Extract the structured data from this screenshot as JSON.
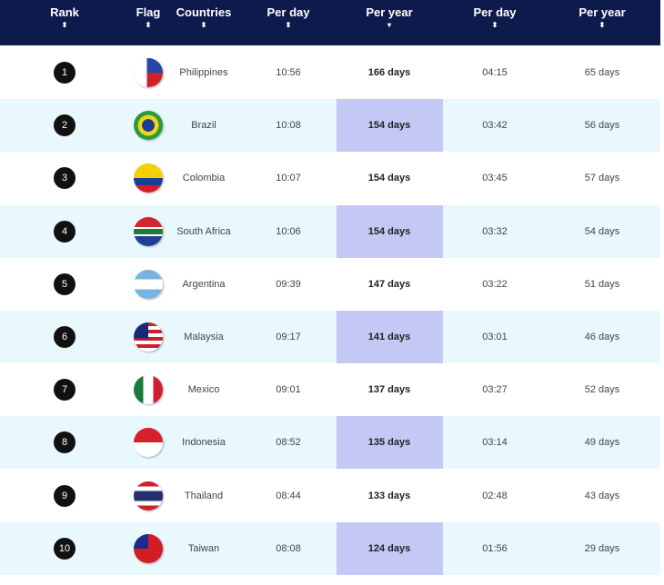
{
  "header": {
    "columns": [
      {
        "label": "Rank",
        "sort": "both"
      },
      {
        "label": "Flag",
        "sort": "both"
      },
      {
        "label": "Countries",
        "sort": "both"
      },
      {
        "label": "Per day",
        "sort": "both"
      },
      {
        "label": "Per year",
        "sort": "desc"
      },
      {
        "label": "Per day",
        "sort": "both"
      },
      {
        "label": "Per year",
        "sort": "both"
      }
    ]
  },
  "sort_icons": {
    "both": "⬍",
    "desc": "▾"
  },
  "rows": [
    {
      "rank": "1",
      "country": "Philippines",
      "per_day_1": "10:56",
      "per_year_1": "166 days",
      "per_day_2": "04:15",
      "per_year_2": "65 days",
      "flag": "linear-gradient(90deg,#fff 0 45%,transparent 45%),linear-gradient(180deg,#2846a8 0 50%,#d0202a 50%)"
    },
    {
      "rank": "2",
      "country": "Brazil",
      "per_day_1": "10:08",
      "per_year_1": "154 days",
      "per_day_2": "03:42",
      "per_year_2": "56 days",
      "flag": "radial-gradient(circle,#1c3d8f 0 30%,#f3d21c 31% 50%,#2a9a3c 51%)"
    },
    {
      "rank": "3",
      "country": "Colombia",
      "per_day_1": "10:07",
      "per_year_1": "154 days",
      "per_day_2": "03:45",
      "per_year_2": "57 days",
      "flag": "linear-gradient(180deg,#f5d000 0 50%,#1a3f96 50% 75%,#d41c2c 75%)"
    },
    {
      "rank": "4",
      "country": "South Africa",
      "per_day_1": "10:06",
      "per_year_1": "154 days",
      "per_day_2": "03:32",
      "per_year_2": "54 days",
      "flag": "linear-gradient(180deg,#d4242c 0 35%,#fff 35% 40%,#1d7a3a 40% 60%,#fff 60% 65%,#1d3f98 65%)"
    },
    {
      "rank": "5",
      "country": "Argentina",
      "per_day_1": "09:39",
      "per_year_1": "147 days",
      "per_day_2": "03:22",
      "per_year_2": "51 days",
      "flag": "linear-gradient(180deg,#78b4e0 0 33%,#fff 33% 67%,#78b4e0 67%)"
    },
    {
      "rank": "6",
      "country": "Malaysia",
      "per_day_1": "09:17",
      "per_year_1": "141 days",
      "per_day_2": "03:01",
      "per_year_2": "46 days",
      "flag": "linear-gradient(90deg,#1a2a78 0 50%,transparent 50%) top/100% 55% no-repeat,repeating-linear-gradient(180deg,#cc1f2e 0 4px,#fff 4px 8px)"
    },
    {
      "rank": "7",
      "country": "Mexico",
      "per_day_1": "09:01",
      "per_year_1": "137 days",
      "per_day_2": "03:27",
      "per_year_2": "52 days",
      "flag": "linear-gradient(90deg,#1a7a3e 0 33%,#fff 33% 67%,#ce2030 67%)"
    },
    {
      "rank": "8",
      "country": "Indonesia",
      "per_day_1": "08:52",
      "per_year_1": "135 days",
      "per_day_2": "03:14",
      "per_year_2": "49 days",
      "flag": "linear-gradient(180deg,#d8202c 0 50%,#fff 50%)"
    },
    {
      "rank": "9",
      "country": "Thailand",
      "per_day_1": "08:44",
      "per_year_1": "133 days",
      "per_day_2": "02:48",
      "per_year_2": "43 days",
      "flag": "linear-gradient(180deg,#d0202c 0 17%,#fff 17% 33%,#23306e 33% 67%,#fff 67% 83%,#d0202c 83%)"
    },
    {
      "rank": "10",
      "country": "Taiwan",
      "per_day_1": "08:08",
      "per_year_1": "124 days",
      "per_day_2": "01:56",
      "per_year_2": "29 days",
      "flag": "linear-gradient(90deg,#1c2b8c 0 50%,transparent 50%) top/100% 50% no-repeat,#d41c24"
    }
  ],
  "colors": {
    "header_bg": "#0e1a4b",
    "alt_row": "#e9f8fc",
    "highlight": "#c4c8f5"
  }
}
